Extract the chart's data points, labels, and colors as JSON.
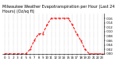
{
  "title": "Milwaukee Weather Evapotranspiration per Hour (Last 24 Hours) (Oz/sq ft)",
  "hours": [
    0,
    1,
    2,
    3,
    4,
    5,
    6,
    7,
    8,
    9,
    10,
    11,
    12,
    13,
    14,
    15,
    16,
    17,
    18,
    19,
    20,
    21,
    22,
    23
  ],
  "values": [
    0,
    0,
    0,
    0,
    0,
    0,
    0.002,
    0.006,
    0.009,
    0.009,
    0.013,
    0.016,
    0.016,
    0.016,
    0.016,
    0.016,
    0.013,
    0.009,
    0.006,
    0.002,
    0,
    0,
    0,
    0
  ],
  "line_color": "#ff0000",
  "line_style": "--",
  "line_width": 0.7,
  "marker": ".",
  "marker_size": 1.0,
  "grid_color": "#999999",
  "grid_style": ":",
  "background_color": "#ffffff",
  "ylim": [
    0,
    0.018
  ],
  "yticks": [
    0.0,
    0.002,
    0.004,
    0.006,
    0.008,
    0.01,
    0.012,
    0.014,
    0.016
  ],
  "ytick_labels": [
    ".000",
    ".002",
    ".004",
    ".006",
    ".008",
    ".010",
    ".012",
    ".014",
    ".016"
  ],
  "title_fontsize": 3.5,
  "tick_fontsize": 2.8,
  "figwidth": 1.6,
  "figheight": 0.87,
  "dpi": 100
}
